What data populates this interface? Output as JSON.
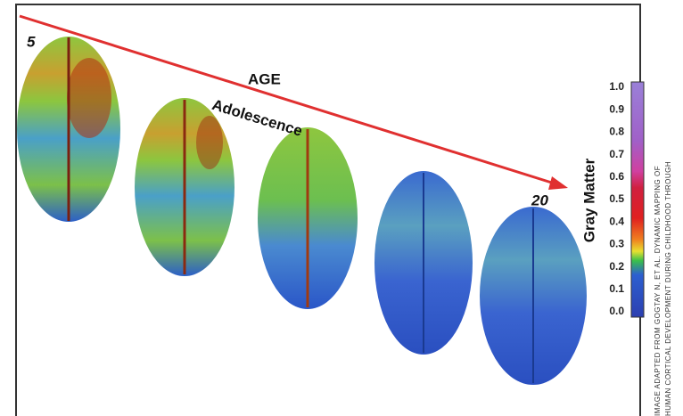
{
  "labels": {
    "start_age": "5",
    "axis": "AGE",
    "stage": "Adolescence",
    "end_age": "20"
  },
  "colorbar": {
    "title": "Gray Matter",
    "ticks": [
      "0.0",
      "0.1",
      "0.2",
      "0.3",
      "0.4",
      "0.5",
      "0.6",
      "0.7",
      "0.8",
      "0.9",
      "1.0"
    ]
  },
  "credit": [
    "IMAGE ADAPTED FROM GOGTAY N, ET AL. DYNAMIC MAPPING OF",
    "HUMAN CORTICAL DEVELOPMENT DURING CHILDHOOD THROUGH"
  ]
}
